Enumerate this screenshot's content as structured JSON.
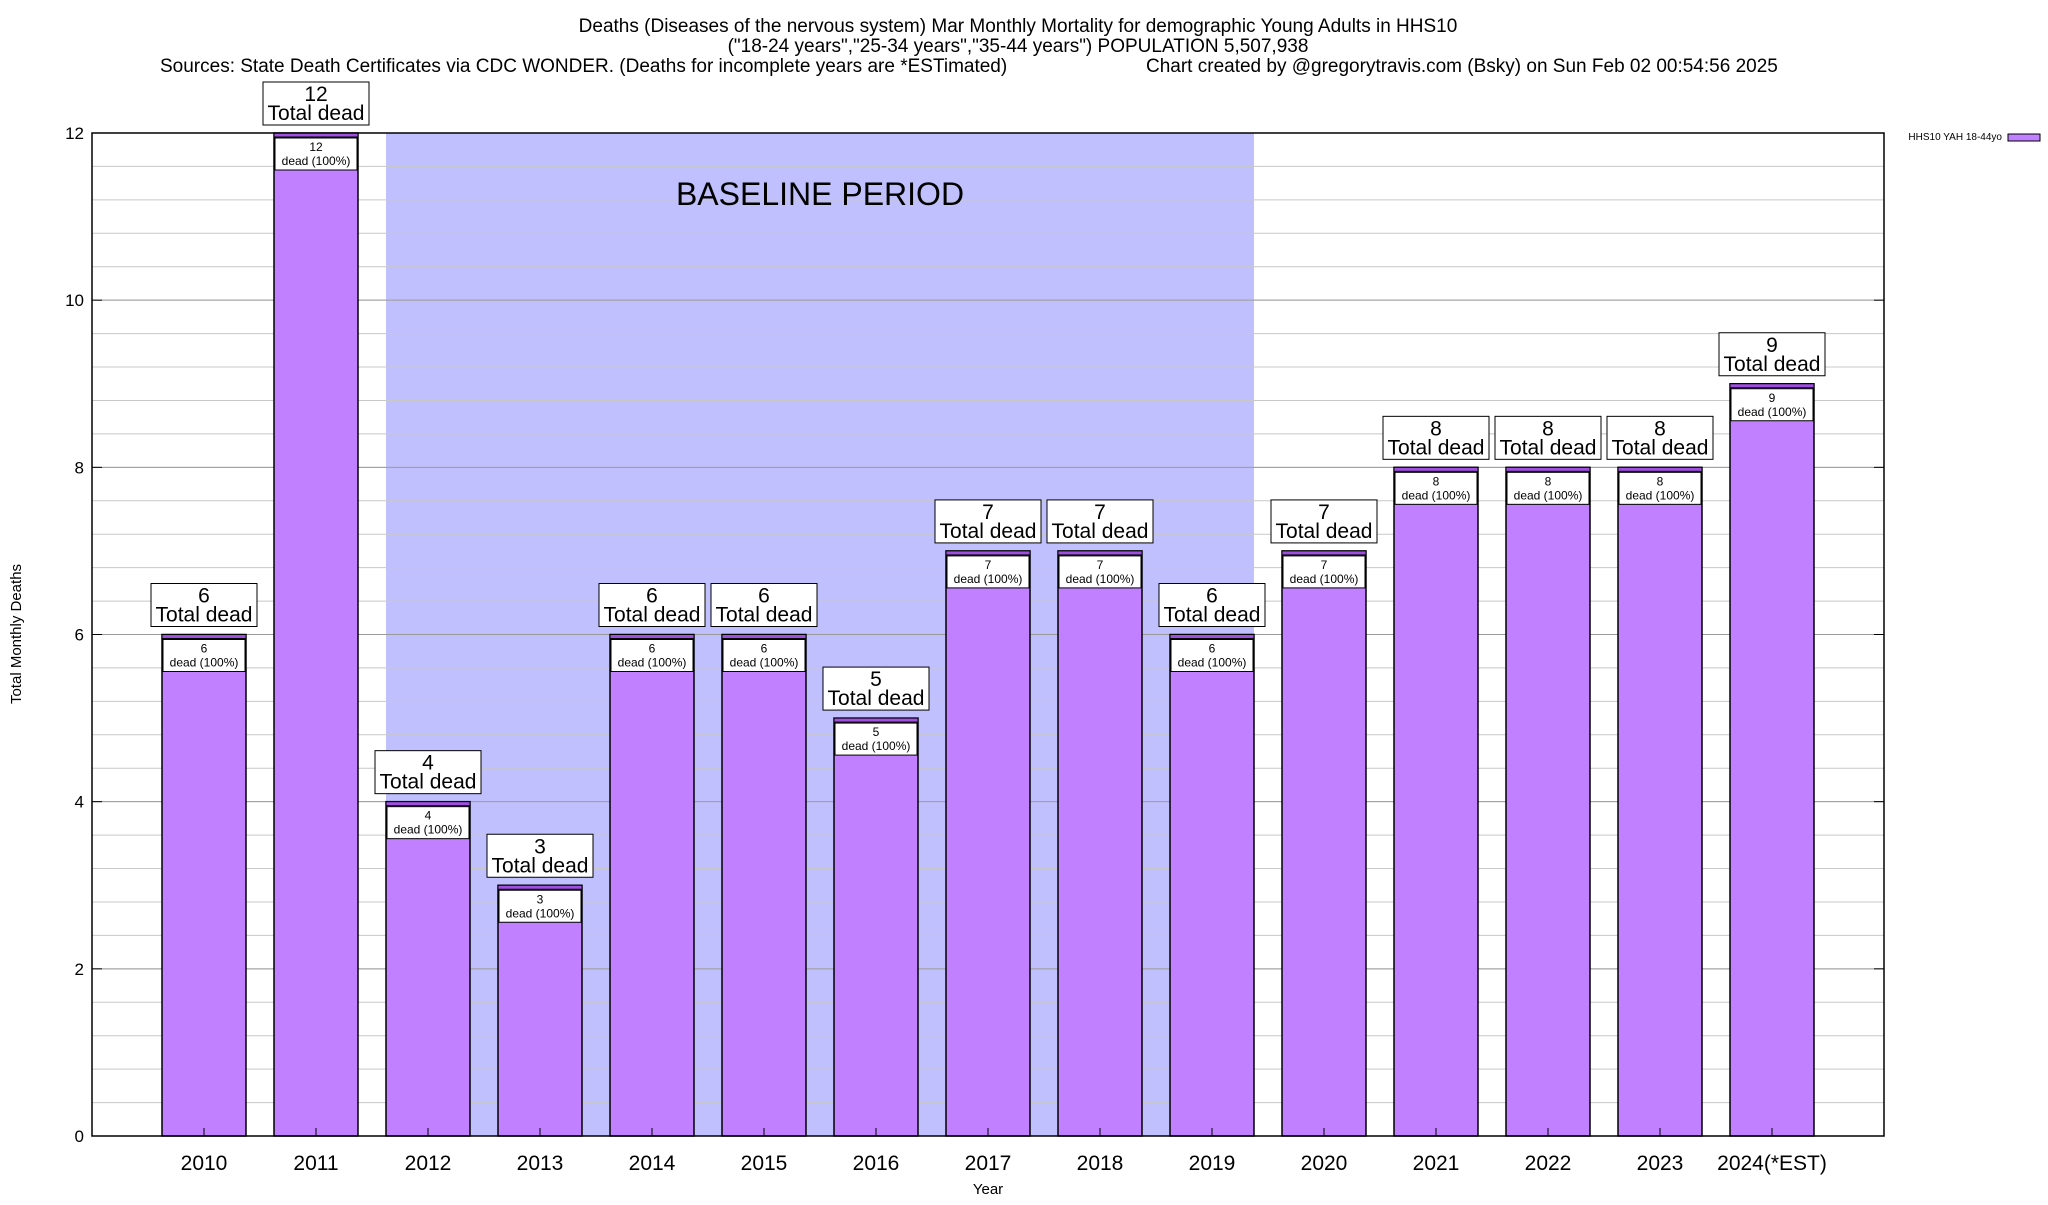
{
  "header": {
    "title_line1": "Deaths (Diseases of the nervous system) Mar Monthly Mortality for demographic Young Adults in HHS10",
    "title_line2": "(\"18-24 years\",\"25-34 years\",\"35-44 years\") POPULATION 5,507,938",
    "sources": "Sources: State Death Certificates via CDC WONDER. (Deaths for incomplete years are *ESTimated)",
    "credit": "Chart created by @gregorytravis.com (Bsky) on Sun Feb 02 00:54:56 2025"
  },
  "chart_data": {
    "type": "bar",
    "xlabel": "Year",
    "ylabel": "Total Monthly Deaths",
    "ylim": [
      0,
      12
    ],
    "yticks": [
      0,
      2,
      4,
      6,
      8,
      10,
      12
    ],
    "grid": true,
    "legend_position": "top-right",
    "categories": [
      "2010",
      "2011",
      "2012",
      "2013",
      "2014",
      "2015",
      "2016",
      "2017",
      "2018",
      "2019",
      "2020",
      "2021",
      "2022",
      "2023",
      "2024(*EST)"
    ],
    "series": [
      {
        "name": "HHS10 YAH 18-44yo",
        "values": [
          6,
          12,
          4,
          3,
          6,
          6,
          5,
          7,
          7,
          6,
          7,
          8,
          8,
          8,
          9
        ],
        "color": "#c080ff"
      }
    ],
    "total_label_suffix": "Total dead",
    "inner_label_suffix": "dead (100%)",
    "baseline": {
      "label": "BASELINE PERIOD",
      "start": "2012",
      "end": "2019",
      "color": "#c0c0ff"
    }
  }
}
